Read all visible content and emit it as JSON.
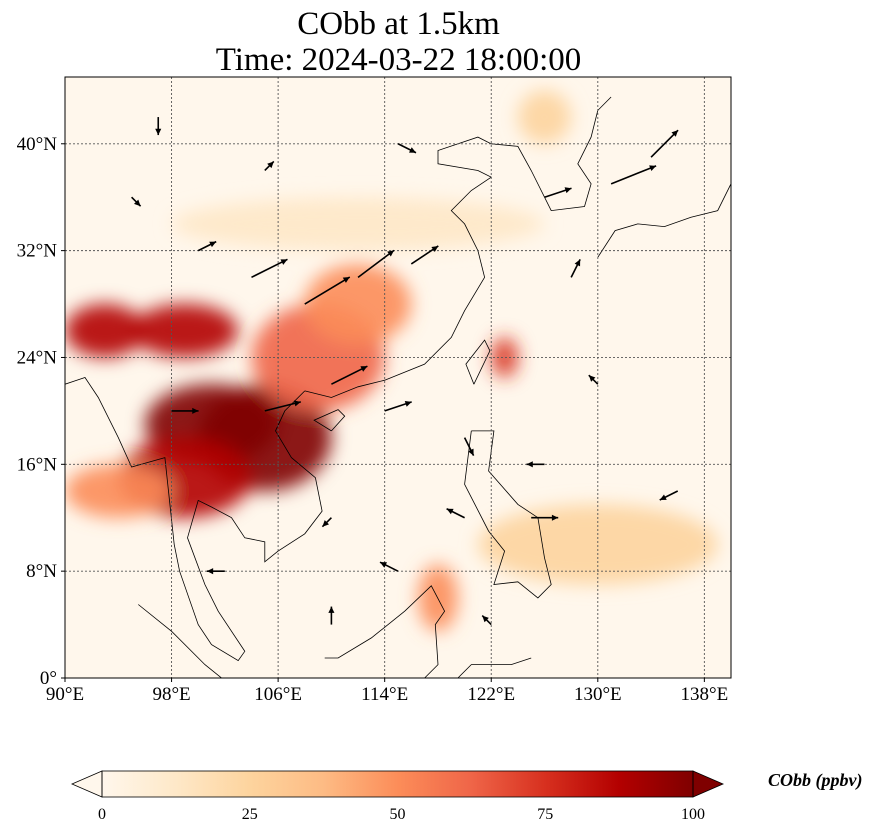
{
  "title": {
    "line1": "CObb at 1.5km",
    "line2": "Time: 2024-03-22 18:00:00"
  },
  "map": {
    "projection": "PlateCarree",
    "lon_range": [
      90,
      140
    ],
    "lat_range": [
      0,
      45
    ],
    "lon_ticks": [
      {
        "value": 90,
        "label": "90°E"
      },
      {
        "value": 98,
        "label": "98°E"
      },
      {
        "value": 106,
        "label": "106°E"
      },
      {
        "value": 114,
        "label": "114°E"
      },
      {
        "value": 122,
        "label": "122°E"
      },
      {
        "value": 130,
        "label": "130°E"
      },
      {
        "value": 138,
        "label": "138°E"
      }
    ],
    "lat_ticks": [
      {
        "value": 0,
        "label": "0°"
      },
      {
        "value": 8,
        "label": "8°N"
      },
      {
        "value": 16,
        "label": "16°N"
      },
      {
        "value": 24,
        "label": "24°N"
      },
      {
        "value": 32,
        "label": "32°N"
      },
      {
        "value": 40,
        "label": "40°N"
      }
    ],
    "gridlines": true,
    "field_name": "CObb",
    "plume_regions": [
      {
        "lon": 105,
        "lat": 18,
        "rlon": 5,
        "rlat": 4,
        "level": 100
      },
      {
        "lon": 101,
        "lat": 19,
        "rlon": 5,
        "rlat": 3,
        "level": 95
      },
      {
        "lon": 99,
        "lat": 15,
        "rlon": 5,
        "rlat": 3,
        "level": 85
      },
      {
        "lon": 93,
        "lat": 26,
        "rlon": 3,
        "rlat": 2,
        "level": 90
      },
      {
        "lon": 99,
        "lat": 26,
        "rlon": 4,
        "rlat": 2,
        "level": 85
      },
      {
        "lon": 109,
        "lat": 24,
        "rlon": 5,
        "rlat": 4,
        "level": 65
      },
      {
        "lon": 112,
        "lat": 28,
        "rlon": 4,
        "rlat": 3,
        "level": 50
      },
      {
        "lon": 94,
        "lat": 14,
        "rlon": 4,
        "rlat": 2,
        "level": 55
      },
      {
        "lon": 118,
        "lat": 6,
        "rlon": 1.5,
        "rlat": 2.5,
        "level": 45
      },
      {
        "lon": 123,
        "lat": 24,
        "rlon": 1,
        "rlat": 1.5,
        "level": 70
      },
      {
        "lon": 126,
        "lat": 42,
        "rlon": 2,
        "rlat": 2,
        "level": 25
      },
      {
        "lon": 130,
        "lat": 10,
        "rlon": 9,
        "rlat": 3,
        "level": 22
      },
      {
        "lon": 112,
        "lat": 34,
        "rlon": 14,
        "rlat": 2,
        "level": 15
      }
    ],
    "wind_arrows": [
      {
        "lon": 100,
        "lat": 32,
        "u": 2,
        "v": 1
      },
      {
        "lon": 104,
        "lat": 30,
        "u": 4,
        "v": 2
      },
      {
        "lon": 108,
        "lat": 28,
        "u": 5,
        "v": 3
      },
      {
        "lon": 112,
        "lat": 30,
        "u": 4,
        "v": 3
      },
      {
        "lon": 116,
        "lat": 31,
        "u": 3,
        "v": 2
      },
      {
        "lon": 110,
        "lat": 22,
        "u": 4,
        "v": 2
      },
      {
        "lon": 114,
        "lat": 20,
        "u": 3,
        "v": 1
      },
      {
        "lon": 105,
        "lat": 20,
        "u": 4,
        "v": 1
      },
      {
        "lon": 98,
        "lat": 20,
        "u": 3,
        "v": 0
      },
      {
        "lon": 126,
        "lat": 36,
        "u": 3,
        "v": 1
      },
      {
        "lon": 131,
        "lat": 37,
        "u": 5,
        "v": 2
      },
      {
        "lon": 134,
        "lat": 39,
        "u": 3,
        "v": 3
      },
      {
        "lon": 128,
        "lat": 30,
        "u": 1,
        "v": 2
      },
      {
        "lon": 120,
        "lat": 18,
        "u": 1,
        "v": -2
      },
      {
        "lon": 126,
        "lat": 16,
        "u": -2,
        "v": 0
      },
      {
        "lon": 136,
        "lat": 14,
        "u": -2,
        "v": -1
      },
      {
        "lon": 125,
        "lat": 12,
        "u": 3,
        "v": 0
      },
      {
        "lon": 110,
        "lat": 12,
        "u": -1,
        "v": -1
      },
      {
        "lon": 115,
        "lat": 8,
        "u": -2,
        "v": 1
      },
      {
        "lon": 102,
        "lat": 8,
        "u": -2,
        "v": 0
      },
      {
        "lon": 95,
        "lat": 36,
        "u": 1,
        "v": -1
      },
      {
        "lon": 105,
        "lat": 38,
        "u": 1,
        "v": 1
      },
      {
        "lon": 115,
        "lat": 40,
        "u": 2,
        "v": -1
      },
      {
        "lon": 120,
        "lat": 12,
        "u": -2,
        "v": 1
      },
      {
        "lon": 130,
        "lat": 22,
        "u": -1,
        "v": 1
      },
      {
        "lon": 97,
        "lat": 42,
        "u": 0,
        "v": -2
      },
      {
        "lon": 110,
        "lat": 4,
        "u": 0,
        "v": 2
      },
      {
        "lon": 122,
        "lat": 4,
        "u": -1,
        "v": 1
      }
    ]
  },
  "colorbar": {
    "title": "CObb (ppbv)",
    "min": 0,
    "max": 100,
    "extend": "both",
    "colormap": "OrRd",
    "colors": [
      "#fff7ec",
      "#fee8c8",
      "#fdd49e",
      "#fdbb84",
      "#fc8d59",
      "#ef6548",
      "#d7301f",
      "#b30000",
      "#7f0000"
    ],
    "ticks": [
      {
        "value": 0,
        "label": "0"
      },
      {
        "value": 25,
        "label": "25"
      },
      {
        "value": 50,
        "label": "50"
      },
      {
        "value": 75,
        "label": "75"
      },
      {
        "value": 100,
        "label": "100"
      }
    ]
  }
}
